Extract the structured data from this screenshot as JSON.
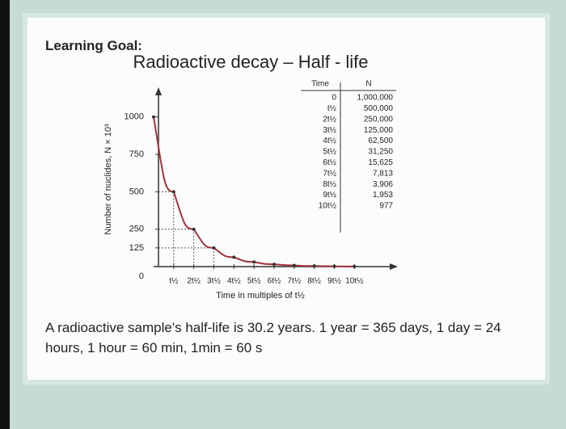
{
  "heading": "Learning Goal:",
  "chart_data": {
    "type": "line",
    "title": "Radioactive decay – Half - life",
    "x_label": "Time in multiples of t½",
    "y_label": "Number of nuclides, N × 10³",
    "x": [
      0,
      1,
      2,
      3,
      4,
      5,
      6,
      7,
      8,
      9,
      10
    ],
    "series": [
      {
        "color": "#a3333a",
        "values": [
          1000,
          500,
          250,
          125,
          62.5,
          31.25,
          15.625,
          7.813,
          3.906,
          1.953,
          0.977
        ]
      }
    ],
    "xlim": [
      0,
      12
    ],
    "xticks": [
      {
        "value": 1,
        "label": "t½"
      },
      {
        "value": 2,
        "label": "2t½"
      },
      {
        "value": 3,
        "label": "3t½"
      },
      {
        "value": 4,
        "label": "4t½"
      },
      {
        "value": 5,
        "label": "5t½"
      },
      {
        "value": 6,
        "label": "6t½"
      },
      {
        "value": 7,
        "label": "7t½"
      },
      {
        "value": 8,
        "label": "8t½"
      },
      {
        "value": 9,
        "label": "9t½"
      },
      {
        "value": 10,
        "label": "10t½"
      }
    ],
    "ylim": [
      0,
      1150
    ],
    "yticks": [
      0,
      125,
      250,
      500,
      750,
      1000
    ]
  },
  "table": {
    "header": [
      "Time",
      "N"
    ],
    "rows": [
      [
        "0",
        "1,000,000"
      ],
      [
        "t½",
        "500,000"
      ],
      [
        "2t½",
        "250,000"
      ],
      [
        "3t½",
        "125,000"
      ],
      [
        "4t½",
        "62,500"
      ],
      [
        "5t½",
        "31,250"
      ],
      [
        "6t½",
        "15,625"
      ],
      [
        "7t½",
        "7,813"
      ],
      [
        "8t½",
        "3,906"
      ],
      [
        "9t½",
        "1,953"
      ],
      [
        "10t½",
        "977"
      ]
    ]
  },
  "caption": "A radioactive sample's half-life is 30.2 years. 1 year = 365 days, 1 day = 24 hours, 1 hour = 60 min, 1min = 60 s"
}
